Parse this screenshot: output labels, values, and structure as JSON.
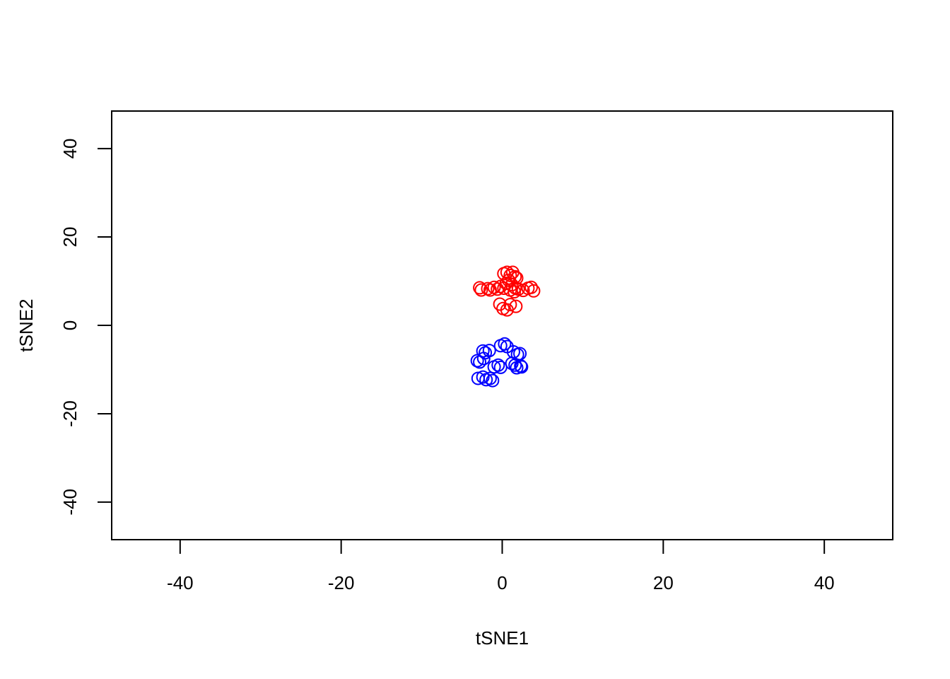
{
  "chart_data": {
    "type": "scatter",
    "title": "",
    "xlabel": "tSNE1",
    "ylabel": "tSNE2",
    "xlim": [
      -48.5,
      48.5
    ],
    "ylim": [
      -48.5,
      48.5
    ],
    "xticks": [
      -40,
      -20,
      0,
      20,
      40
    ],
    "yticks": [
      -40,
      -20,
      0,
      20,
      40
    ],
    "xtick_labels": [
      "-40",
      "-20",
      "0",
      "20",
      "40"
    ],
    "ytick_labels": [
      "-40",
      "-20",
      "0",
      "20",
      "40"
    ],
    "grid": false,
    "legend": "none",
    "marker": "open-circle",
    "series": [
      {
        "color": "#ff0000",
        "points": [
          [
            -2.8,
            8.5
          ],
          [
            -2.6,
            8.0
          ],
          [
            -1.8,
            8.3
          ],
          [
            -1.5,
            8.0
          ],
          [
            -1.0,
            8.6
          ],
          [
            -0.6,
            8.2
          ],
          [
            -0.2,
            8.8
          ],
          [
            0.2,
            8.4
          ],
          [
            0.5,
            9.5
          ],
          [
            0.2,
            11.7
          ],
          [
            0.6,
            12.0
          ],
          [
            1.0,
            11.3
          ],
          [
            1.3,
            12.0
          ],
          [
            1.6,
            11.0
          ],
          [
            1.8,
            10.7
          ],
          [
            0.8,
            10.2
          ],
          [
            1.2,
            9.2
          ],
          [
            1.0,
            8.0
          ],
          [
            1.5,
            7.6
          ],
          [
            2.0,
            8.2
          ],
          [
            2.6,
            7.9
          ],
          [
            3.2,
            8.4
          ],
          [
            3.6,
            8.6
          ],
          [
            3.9,
            7.8
          ],
          [
            1.6,
            8.5
          ],
          [
            -0.3,
            4.8
          ],
          [
            0.1,
            3.8
          ],
          [
            0.6,
            3.5
          ],
          [
            1.0,
            4.7
          ],
          [
            1.7,
            4.3
          ]
        ]
      },
      {
        "color": "#0000ff",
        "points": [
          [
            -3.1,
            -8.0
          ],
          [
            -2.8,
            -8.3
          ],
          [
            -2.4,
            -5.8
          ],
          [
            -2.1,
            -6.2
          ],
          [
            -1.6,
            -5.7
          ],
          [
            -2.3,
            -7.5
          ],
          [
            -3.0,
            -12.0
          ],
          [
            -2.4,
            -11.7
          ],
          [
            -2.0,
            -12.3
          ],
          [
            -1.5,
            -12.0
          ],
          [
            -1.2,
            -12.5
          ],
          [
            -1.0,
            -9.4
          ],
          [
            -0.5,
            -9.0
          ],
          [
            -0.2,
            -9.5
          ],
          [
            -0.2,
            -4.6
          ],
          [
            0.3,
            -4.2
          ],
          [
            0.6,
            -4.8
          ],
          [
            1.4,
            -6.0
          ],
          [
            1.9,
            -6.6
          ],
          [
            2.2,
            -6.4
          ],
          [
            1.6,
            -9.0
          ],
          [
            1.8,
            -9.6
          ],
          [
            2.3,
            -9.2
          ],
          [
            2.4,
            -9.4
          ],
          [
            1.2,
            -8.6
          ]
        ]
      }
    ]
  }
}
